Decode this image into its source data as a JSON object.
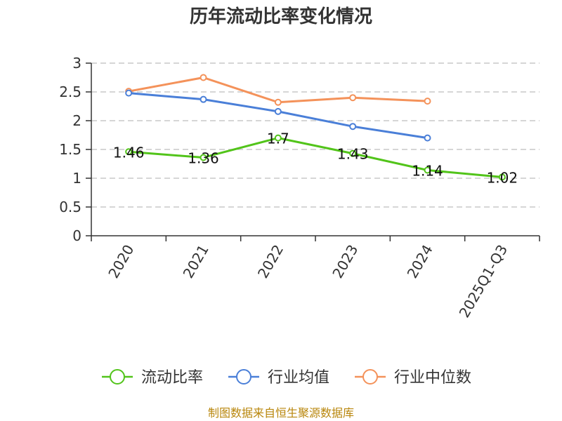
{
  "source_text": "制图数据来自恒生聚源数据库",
  "colors": {
    "current_ratio": "#52c41a",
    "industry_avg": "#4a7fd8",
    "industry_median": "#f4925a",
    "grid": "#c8c8c8",
    "axis": "#333333",
    "source": "#b8860b"
  },
  "chart_data": {
    "type": "line",
    "title": "历年流动比率变化情况",
    "categories": [
      "2020",
      "2021",
      "2022",
      "2023",
      "2024",
      "2025Q1-Q3"
    ],
    "ylim": [
      0,
      3
    ],
    "yticks": [
      "0",
      "0.5",
      "1",
      "1.5",
      "2",
      "2.5",
      "3"
    ],
    "grid": true,
    "legend_position": "bottom",
    "series": [
      {
        "name": "流动比率",
        "key": "current_ratio",
        "values": [
          1.46,
          1.36,
          1.7,
          1.43,
          1.14,
          1.02
        ],
        "labels": [
          "1.46",
          "1.36",
          "1.7",
          "1.43",
          "1.14",
          "1.02"
        ]
      },
      {
        "name": "行业均值",
        "key": "industry_avg",
        "values": [
          2.48,
          2.37,
          2.16,
          1.9,
          1.7,
          null
        ]
      },
      {
        "name": "行业中位数",
        "key": "industry_median",
        "values": [
          2.51,
          2.75,
          2.32,
          2.4,
          2.34,
          null
        ]
      }
    ]
  }
}
